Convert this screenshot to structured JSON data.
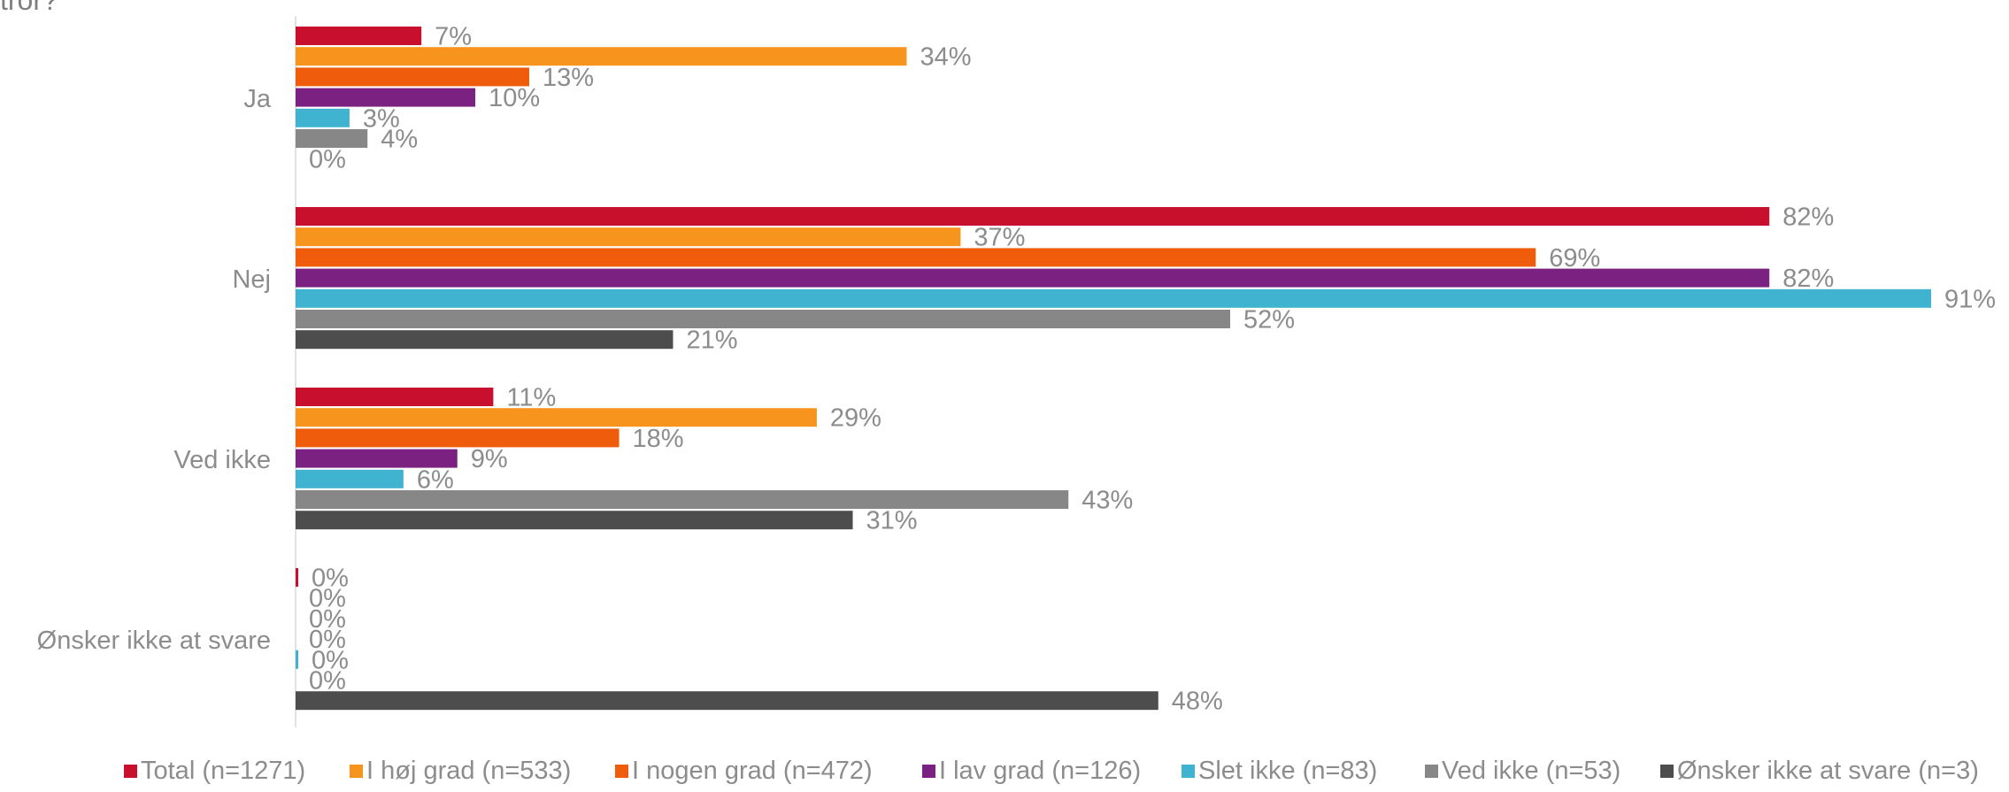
{
  "title_fragment": "tror?",
  "chart_data": {
    "type": "bar",
    "orientation": "horizontal",
    "value_suffix": "%",
    "xlim": [
      0,
      91
    ],
    "grid": false,
    "legend_position": "bottom",
    "categories": [
      "Ja",
      "Nej",
      "Ved ikke",
      "Ønsker ikke at svare"
    ],
    "series": [
      {
        "name": "Total (n=1271)",
        "color": "#c8102e",
        "values": [
          7,
          82,
          11,
          0
        ]
      },
      {
        "name": "I høj grad (n=533)",
        "color": "#f7941d",
        "values": [
          34,
          37,
          29,
          0
        ]
      },
      {
        "name": "I nogen grad (n=472)",
        "color": "#ee5c0c",
        "values": [
          13,
          69,
          18,
          0
        ]
      },
      {
        "name": "I lav grad (n=126)",
        "color": "#7b2182",
        "values": [
          10,
          82,
          9,
          0
        ]
      },
      {
        "name": "Slet ikke (n=83)",
        "color": "#3fb3cf",
        "values": [
          3,
          91,
          6,
          0
        ]
      },
      {
        "name": "Ved ikke (n=53)",
        "color": "#878787",
        "values": [
          4,
          52,
          43,
          0
        ]
      },
      {
        "name": "Ønsker ikke at svare (n=3)",
        "color": "#4d4d4d",
        "values": [
          0,
          21,
          31,
          48
        ]
      }
    ]
  }
}
